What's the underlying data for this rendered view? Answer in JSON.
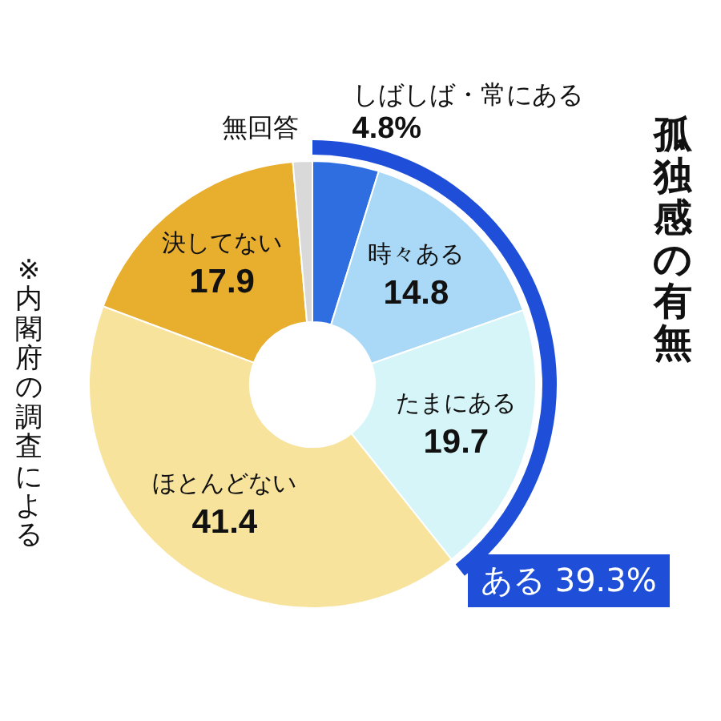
{
  "chart_data": {
    "type": "donut",
    "title": "孤独感の有無",
    "categories": [
      "しばしば・常にある",
      "時々ある",
      "たまにある",
      "ほとんどない",
      "決してない",
      "無回答"
    ],
    "values": [
      4.8,
      14.8,
      19.7,
      41.4,
      17.9,
      1.4
    ],
    "value_labels": [
      "4.8%",
      "14.8",
      "19.7",
      "41.4",
      "17.9",
      null
    ],
    "colors": [
      "#2f6ee0",
      "#a9d9f7",
      "#d6f5f8",
      "#f7e39c",
      "#e8ae2e",
      "#d9d9d9"
    ],
    "annotations": [
      "※内閣府の調査による",
      "ある 39.3%"
    ],
    "legend": false
  }
}
